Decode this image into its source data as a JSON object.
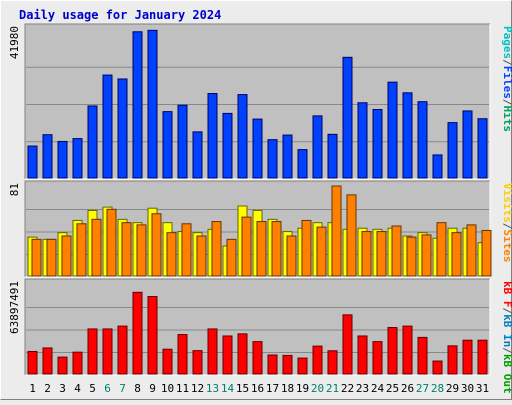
{
  "chart_data": [
    {
      "type": "bar",
      "title": "Daily usage for January 2024",
      "categories": [
        "1",
        "2",
        "3",
        "4",
        "5",
        "6",
        "7",
        "8",
        "9",
        "10",
        "11",
        "12",
        "13",
        "14",
        "15",
        "16",
        "17",
        "18",
        "19",
        "20",
        "21",
        "22",
        "23",
        "24",
        "25",
        "26",
        "27",
        "28",
        "29",
        "30",
        "31"
      ],
      "weekend_days": [
        "6",
        "7",
        "13",
        "14",
        "20",
        "21",
        "27",
        "28"
      ],
      "ylim": [
        0,
        41980
      ],
      "max_label": "41980",
      "legend_right": [
        "Pages",
        "/",
        "Files",
        "/",
        "Hits"
      ],
      "series": [
        {
          "name": "Hits",
          "values": [
            9000,
            12200,
            10300,
            11100,
            20300,
            29000,
            27900,
            41200,
            41600,
            18700,
            20500,
            13000,
            23800,
            18200,
            23500,
            16600,
            10800,
            12100,
            8000,
            17500,
            12300,
            34000,
            21200,
            19300,
            27000,
            24000,
            21500,
            6500,
            15600,
            18900,
            16700
          ]
        }
      ]
    },
    {
      "type": "bar",
      "ylim": [
        0,
        81
      ],
      "max_label": "81",
      "legend_right": [
        "Visits",
        "/",
        "Sites"
      ],
      "series": [
        {
          "name": "Visits",
          "values": [
            35,
            33,
            39,
            50,
            59,
            62,
            51,
            48,
            61,
            48,
            40,
            39,
            42,
            27,
            63,
            59,
            51,
            40,
            43,
            48,
            48,
            42,
            43,
            42,
            43,
            36,
            39,
            34,
            43,
            43,
            30
          ]
        },
        {
          "name": "Sites",
          "values": [
            33,
            33,
            36,
            47,
            51,
            60,
            48,
            46,
            56,
            39,
            47,
            36,
            49,
            33,
            53,
            49,
            49,
            36,
            50,
            44,
            81,
            73,
            40,
            40,
            45,
            35,
            37,
            48,
            39,
            46,
            41
          ]
        }
      ]
    },
    {
      "type": "bar",
      "ylim": [
        0,
        63897491
      ],
      "max_label": "63897491",
      "legend_right": [
        "kB F",
        "/",
        "kB In",
        "/",
        "kB Out"
      ],
      "series": [
        {
          "name": "kB F",
          "values": [
            16000000,
            18500000,
            12000000,
            15500000,
            32000000,
            32000000,
            34000000,
            58000000,
            55000000,
            17600000,
            28000000,
            16600000,
            32000000,
            27000000,
            28500000,
            23000000,
            13500000,
            13200000,
            11300000,
            19800000,
            16500000,
            42000000,
            27000000,
            23000000,
            33000000,
            34000000,
            26000000,
            9200000,
            20000000,
            24000000,
            24000000
          ]
        }
      ]
    }
  ]
}
